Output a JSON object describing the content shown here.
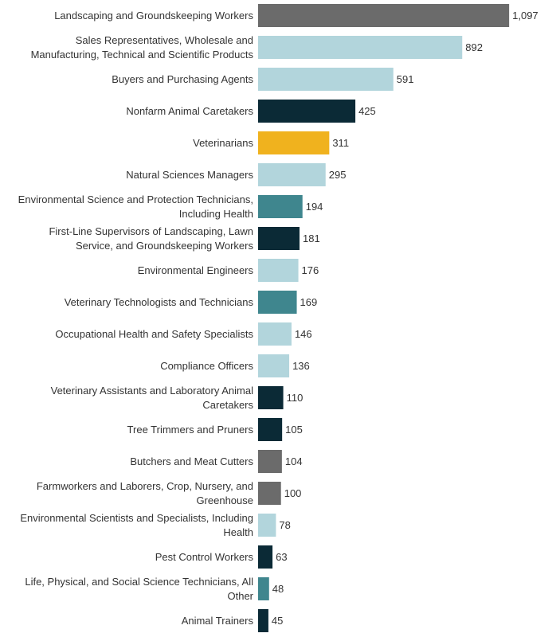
{
  "chart_data": {
    "type": "bar",
    "orientation": "horizontal",
    "categories": [
      "Landscaping and Groundskeeping Workers",
      "Sales Representatives, Wholesale and Manufacturing, Technical and Scientific Products",
      "Buyers and Purchasing Agents",
      "Nonfarm Animal Caretakers",
      "Veterinarians",
      "Natural Sciences Managers",
      "Environmental Science and Protection Technicians, Including Health",
      "First-Line Supervisors of Landscaping, Lawn Service, and Groundskeeping Workers",
      "Environmental Engineers",
      "Veterinary Technologists and Technicians",
      "Occupational Health and Safety Specialists",
      "Compliance Officers",
      "Veterinary Assistants and Laboratory Animal Caretakers",
      "Tree Trimmers and Pruners",
      "Butchers and Meat Cutters",
      "Farmworkers and Laborers, Crop, Nursery, and Greenhouse",
      "Environmental Scientists and Specialists, Including Health",
      "Pest Control Workers",
      "Life, Physical, and Social Science Technicians, All Other",
      "Animal Trainers"
    ],
    "label_lines": [
      [
        "Landscaping and Groundskeeping Workers"
      ],
      [
        "Sales Representatives, Wholesale and",
        "Manufacturing, Technical and Scientific Products"
      ],
      [
        "Buyers and Purchasing Agents"
      ],
      [
        "Nonfarm Animal Caretakers"
      ],
      [
        "Veterinarians"
      ],
      [
        "Natural Sciences Managers"
      ],
      [
        "Environmental Science and Protection Technicians,",
        "Including Health"
      ],
      [
        "First-Line Supervisors of Landscaping, Lawn",
        "Service, and Groundskeeping Workers"
      ],
      [
        "Environmental Engineers"
      ],
      [
        "Veterinary Technologists and Technicians"
      ],
      [
        "Occupational Health and Safety Specialists"
      ],
      [
        "Compliance Officers"
      ],
      [
        "Veterinary Assistants and Laboratory Animal",
        "Caretakers"
      ],
      [
        "Tree Trimmers and Pruners"
      ],
      [
        "Butchers and Meat Cutters"
      ],
      [
        "Farmworkers and Laborers, Crop, Nursery, and",
        "Greenhouse"
      ],
      [
        "Environmental Scientists and Specialists, Including",
        "Health"
      ],
      [
        "Pest Control Workers"
      ],
      [
        "Life, Physical, and Social Science Technicians, All",
        "Other"
      ],
      [
        "Animal Trainers"
      ]
    ],
    "values": [
      1097,
      892,
      591,
      425,
      311,
      295,
      194,
      181,
      176,
      169,
      146,
      136,
      110,
      105,
      104,
      100,
      78,
      63,
      48,
      45
    ],
    "value_labels": [
      "1,097",
      "892",
      "591",
      "425",
      "311",
      "295",
      "194",
      "181",
      "176",
      "169",
      "146",
      "136",
      "110",
      "105",
      "104",
      "100",
      "78",
      "63",
      "48",
      "45"
    ],
    "colors": [
      "#6b6b6b",
      "#b2d5dc",
      "#b2d5dc",
      "#0b2a36",
      "#f0b21e",
      "#b2d5dc",
      "#3f868e",
      "#0b2a36",
      "#b2d5dc",
      "#3f868e",
      "#b2d5dc",
      "#b2d5dc",
      "#0b2a36",
      "#0b2a36",
      "#6b6b6b",
      "#6b6b6b",
      "#b2d5dc",
      "#0b2a36",
      "#3f868e",
      "#0b2a36"
    ],
    "xlim": [
      0,
      1100
    ],
    "grid": false,
    "title": "",
    "xlabel": "",
    "ylabel": ""
  }
}
